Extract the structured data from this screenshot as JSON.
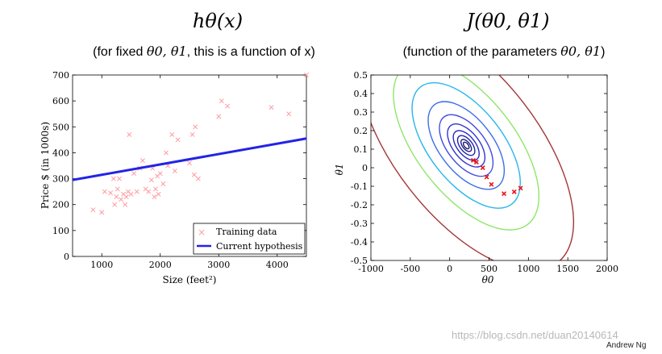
{
  "header": {
    "left_title": "hθ(x)",
    "left_subtitle_pre": "(for fixed ",
    "left_subtitle_math": "θ0, θ1",
    "left_subtitle_post": ", this is a function of x)",
    "right_title": "J(θ0, θ1)",
    "right_subtitle_pre": "(function of the parameters ",
    "right_subtitle_math": "θ0, θ1",
    "right_subtitle_post": ")"
  },
  "footer": {
    "watermark": "https://blog.csdn.net/duan20140614",
    "credit": "Andrew Ng"
  },
  "colors": {
    "training_marker": "#ff9aa2",
    "hypothesis_line": "#2323e6",
    "minimum_markers": "#e8151b"
  },
  "chart_data": [
    {
      "type": "scatter",
      "title": "hθ(x)",
      "xlabel": "Size (feet²)",
      "ylabel": "Price $ (in 1000s)",
      "xlim": [
        500,
        4500
      ],
      "ylim": [
        0,
        700
      ],
      "xticks": [
        "1000",
        "2000",
        "3000",
        "4000"
      ],
      "yticks": [
        "0",
        "100",
        "200",
        "300",
        "400",
        "500",
        "600",
        "700"
      ],
      "legend_position": "bottom-right",
      "series": [
        {
          "name": "Training data",
          "kind": "scatter",
          "marker": "x",
          "points": [
            [
              850,
              180
            ],
            [
              1000,
              170
            ],
            [
              1050,
              250
            ],
            [
              1150,
              245
            ],
            [
              1200,
              300
            ],
            [
              1220,
              200
            ],
            [
              1250,
              230
            ],
            [
              1270,
              260
            ],
            [
              1300,
              300
            ],
            [
              1330,
              220
            ],
            [
              1370,
              240
            ],
            [
              1400,
              200
            ],
            [
              1420,
              230
            ],
            [
              1450,
              250
            ],
            [
              1470,
              470
            ],
            [
              1500,
              240
            ],
            [
              1550,
              320
            ],
            [
              1600,
              250
            ],
            [
              1650,
              340
            ],
            [
              1700,
              370
            ],
            [
              1750,
              260
            ],
            [
              1800,
              250
            ],
            [
              1850,
              295
            ],
            [
              1870,
              340
            ],
            [
              1900,
              230
            ],
            [
              1920,
              260
            ],
            [
              1950,
              310
            ],
            [
              1970,
              240
            ],
            [
              2000,
              320
            ],
            [
              2050,
              280
            ],
            [
              2100,
              400
            ],
            [
              2130,
              350
            ],
            [
              2200,
              470
            ],
            [
              2250,
              330
            ],
            [
              2300,
              450
            ],
            [
              2500,
              360
            ],
            [
              2550,
              470
            ],
            [
              2580,
              315
            ],
            [
              2600,
              500
            ],
            [
              2650,
              300
            ],
            [
              3000,
              540
            ],
            [
              3050,
              600
            ],
            [
              3150,
              580
            ],
            [
              3900,
              575
            ],
            [
              4200,
              550
            ],
            [
              4500,
              700
            ]
          ]
        },
        {
          "name": "Current hypothesis",
          "kind": "line",
          "points": [
            [
              500,
              295
            ],
            [
              4500,
              455
            ]
          ]
        }
      ]
    },
    {
      "type": "contour",
      "title": "J(θ0, θ1)",
      "xlabel": "θ0",
      "ylabel": "θ1",
      "xlim": [
        -1000,
        2000
      ],
      "ylim": [
        -0.5,
        0.5
      ],
      "xticks": [
        "-1000",
        "-500",
        "0",
        "500",
        "1000",
        "1500",
        "2000"
      ],
      "yticks": [
        "-0.5",
        "-0.4",
        "-0.3",
        "-0.2",
        "-0.1",
        "0",
        "0.1",
        "0.2",
        "0.3",
        "0.4",
        "0.5"
      ],
      "center": [
        210,
        0.12
      ],
      "levels": [
        {
          "rx": 60,
          "ry": 0.02,
          "color": "#1c1c6e"
        },
        {
          "rx": 110,
          "ry": 0.036,
          "color": "#20208a"
        },
        {
          "rx": 180,
          "ry": 0.06,
          "color": "#2323a6"
        },
        {
          "rx": 270,
          "ry": 0.09,
          "color": "#2a2ac0"
        },
        {
          "rx": 390,
          "ry": 0.13,
          "color": "#3333d2"
        },
        {
          "rx": 560,
          "ry": 0.185,
          "color": "#3f48df"
        },
        {
          "rx": 800,
          "ry": 0.26,
          "color": "#3c6ee8"
        },
        {
          "rx": 1150,
          "ry": 0.36,
          "color": "#27b6ec"
        },
        {
          "rx": 1550,
          "ry": 0.48,
          "color": "#8ee66a"
        },
        {
          "rx": 2300,
          "ry": 0.7,
          "color": "#a33636"
        }
      ],
      "min_points": [
        [
          300,
          0.04
        ],
        [
          340,
          0.03
        ],
        [
          420,
          0
        ],
        [
          470,
          -0.05
        ],
        [
          530,
          -0.09
        ],
        [
          690,
          -0.14
        ],
        [
          820,
          -0.13
        ],
        [
          900,
          -0.11
        ]
      ]
    }
  ]
}
